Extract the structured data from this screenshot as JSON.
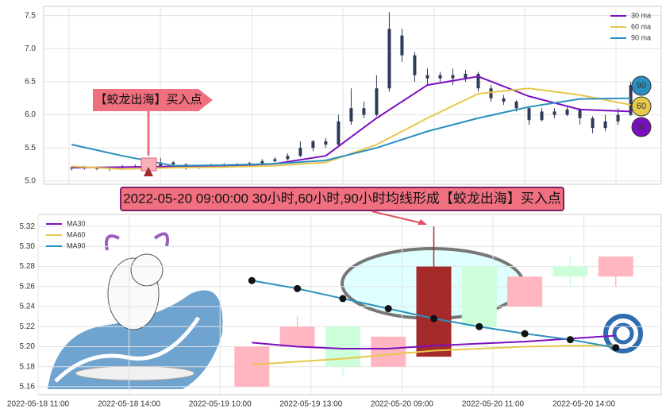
{
  "chart_data": [
    {
      "type": "candlestick",
      "color": "#2e3a59",
      "x": [
        0,
        1,
        2,
        3,
        4,
        5,
        6,
        7,
        8,
        9,
        10,
        11,
        12,
        13,
        14,
        15,
        16,
        17,
        18,
        19,
        20,
        21,
        22,
        23,
        24,
        25,
        26,
        27,
        28,
        29,
        30,
        31,
        32,
        33,
        34,
        35,
        36,
        37,
        38,
        39,
        40,
        41,
        42,
        43,
        44
      ],
      "open": [
        5.2,
        5.19,
        5.21,
        5.18,
        5.2,
        5.22,
        5.21,
        5.23,
        5.28,
        5.25,
        5.2,
        5.22,
        5.24,
        5.23,
        5.25,
        5.27,
        5.3,
        5.33,
        5.38,
        5.5,
        5.6,
        5.55,
        5.9,
        6.1,
        6.0,
        6.4,
        7.2,
        6.9,
        6.6,
        6.55,
        6.6,
        6.55,
        6.62,
        6.4,
        6.25,
        6.2,
        6.1,
        5.92,
        6.05,
        6.0,
        6.08,
        5.95,
        5.8,
        5.9,
        6.0
      ],
      "close": [
        5.19,
        5.21,
        5.18,
        5.2,
        5.22,
        5.21,
        5.23,
        5.28,
        5.25,
        5.2,
        5.22,
        5.24,
        5.23,
        5.25,
        5.27,
        5.3,
        5.33,
        5.38,
        5.5,
        5.6,
        5.55,
        5.9,
        6.1,
        6.0,
        6.4,
        7.3,
        6.9,
        6.6,
        6.55,
        6.6,
        6.55,
        6.62,
        6.4,
        6.25,
        6.2,
        6.1,
        5.92,
        6.05,
        6.0,
        6.08,
        5.95,
        5.8,
        5.9,
        6.0,
        6.45
      ],
      "high": [
        5.22,
        5.23,
        5.22,
        5.22,
        5.24,
        5.25,
        5.3,
        5.35,
        5.3,
        5.27,
        5.24,
        5.26,
        5.27,
        5.27,
        5.29,
        5.33,
        5.36,
        5.42,
        5.6,
        5.62,
        5.65,
        6.0,
        6.4,
        6.2,
        6.6,
        7.55,
        7.3,
        6.95,
        6.7,
        6.65,
        6.7,
        6.68,
        6.65,
        6.45,
        6.3,
        6.22,
        6.12,
        6.1,
        6.1,
        6.12,
        6.1,
        5.98,
        6.0,
        6.1,
        6.5
      ],
      "low": [
        5.16,
        5.17,
        5.16,
        5.15,
        5.18,
        5.19,
        5.18,
        5.2,
        5.22,
        5.17,
        5.18,
        5.21,
        5.21,
        5.22,
        5.24,
        5.26,
        5.28,
        5.31,
        5.36,
        5.45,
        5.5,
        5.52,
        5.85,
        5.95,
        5.98,
        6.35,
        6.8,
        6.5,
        6.45,
        6.5,
        6.45,
        6.5,
        6.35,
        6.2,
        6.15,
        6.05,
        5.85,
        5.9,
        5.95,
        5.98,
        5.85,
        5.72,
        5.75,
        5.85,
        5.98
      ],
      "series": [
        {
          "name": "30 ma",
          "color": "#7b0fbf",
          "end_label": "30",
          "x": [
            0,
            4,
            8,
            12,
            16,
            20,
            24,
            28,
            32,
            36,
            40,
            44
          ],
          "values": [
            5.2,
            5.21,
            5.22,
            5.22,
            5.26,
            5.38,
            5.95,
            6.45,
            6.58,
            6.28,
            6.08,
            6.05
          ]
        },
        {
          "name": "60 ma",
          "color": "#e6c84a",
          "end_label": "60",
          "x": [
            0,
            4,
            8,
            12,
            16,
            20,
            24,
            28,
            32,
            36,
            40,
            44
          ],
          "values": [
            5.22,
            5.18,
            5.2,
            5.21,
            5.23,
            5.28,
            5.55,
            5.95,
            6.32,
            6.4,
            6.3,
            6.15
          ]
        },
        {
          "name": "90 ma",
          "color": "#2a8fc0",
          "end_label": "90",
          "x": [
            0,
            4,
            8,
            12,
            16,
            20,
            24,
            28,
            32,
            36,
            40,
            44
          ],
          "values": [
            5.55,
            5.38,
            5.23,
            5.24,
            5.26,
            5.31,
            5.5,
            5.75,
            5.95,
            6.12,
            6.24,
            6.25
          ]
        }
      ],
      "xlim": [
        -2.2,
        46.4
      ],
      "ylim": [
        4.95,
        7.64
      ],
      "yticks": [
        {
          "value": 5.0,
          "label": "5.0"
        },
        5.5,
        {
          "value": 6.0,
          "label": "6.0"
        },
        6.5,
        {
          "value": 7.0,
          "label": "7.0"
        },
        7.5
      ],
      "grid": true,
      "legend": "upper right",
      "annotation": "【蛟龙出海】买入点"
    },
    {
      "type": "candlestick",
      "x": [
        4.7,
        5.7,
        6.7,
        7.7,
        8.7,
        9.7,
        10.7,
        11.7,
        12.7
      ],
      "open": [
        5.16,
        5.2,
        5.22,
        5.18,
        5.19,
        5.28,
        5.24,
        5.28,
        5.27
      ],
      "close": [
        5.2,
        5.22,
        5.18,
        5.21,
        5.28,
        5.22,
        5.27,
        5.27,
        5.29
      ],
      "high": [
        5.2,
        5.23,
        5.22,
        5.21,
        5.32,
        5.28,
        5.27,
        5.29,
        5.29
      ],
      "low": [
        5.16,
        5.2,
        5.17,
        5.18,
        5.19,
        5.22,
        5.24,
        5.26,
        5.26
      ],
      "colors": [
        "#ffb6c1",
        "#ffb6c1",
        "#ccffd9",
        "#ffb6c1",
        "#a52a2a",
        "#ccffd9",
        "#ffb6c1",
        "#ccffd9",
        "#ffb6c1"
      ],
      "series": [
        {
          "name": "MA30",
          "color": "#7b0fbf",
          "x": [
            4.7,
            5.7,
            6.7,
            7.7,
            8.7,
            9.7,
            10.7,
            11.7,
            12.7
          ],
          "values": [
            5.204,
            5.2,
            5.198,
            5.198,
            5.201,
            5.203,
            5.205,
            5.208,
            5.211
          ]
        },
        {
          "name": "MA60",
          "color": "#e6c84a",
          "x": [
            4.7,
            5.7,
            6.7,
            7.7,
            8.7,
            9.7,
            10.7,
            11.7,
            12.7
          ],
          "values": [
            5.182,
            5.185,
            5.188,
            5.192,
            5.196,
            5.198,
            5.2,
            5.201,
            5.201
          ]
        },
        {
          "name": "MA90",
          "color": "#2a8fc0",
          "x": [
            4.7,
            5.7,
            6.7,
            7.7,
            8.7,
            9.7,
            10.7,
            11.7,
            12.7
          ],
          "values": [
            5.266,
            5.258,
            5.248,
            5.238,
            5.228,
            5.22,
            5.213,
            5.207,
            5.199
          ]
        }
      ],
      "xlim": [
        0,
        13.7
      ],
      "ylim": [
        5.152,
        5.332
      ],
      "xticks": [
        {
          "value": 0,
          "label": "2022-05-18 11:00"
        },
        {
          "value": 2,
          "label": "2022-05-18 14:00"
        },
        {
          "value": 4,
          "label": "2022-05-19 10:00"
        },
        {
          "value": 6,
          "label": "2022-05-19 13:00"
        },
        {
          "value": 8,
          "label": "2022-05-20 09:00"
        },
        {
          "value": 10,
          "label": "2022-05-20 11:00"
        },
        {
          "value": 12,
          "label": "2022-05-20 14:00"
        }
      ],
      "yticks": [
        5.16,
        5.18,
        {
          "value": 5.2,
          "label": "5.20"
        },
        5.22,
        5.24,
        5.26,
        5.28,
        {
          "value": 5.3,
          "label": "5.30"
        },
        5.32
      ],
      "grid": true,
      "legend": "upper left",
      "annotation": "2022-05-20 09:00:00 30小时,60小时,90小时均线形成【蛟龙出海】买入点"
    }
  ]
}
